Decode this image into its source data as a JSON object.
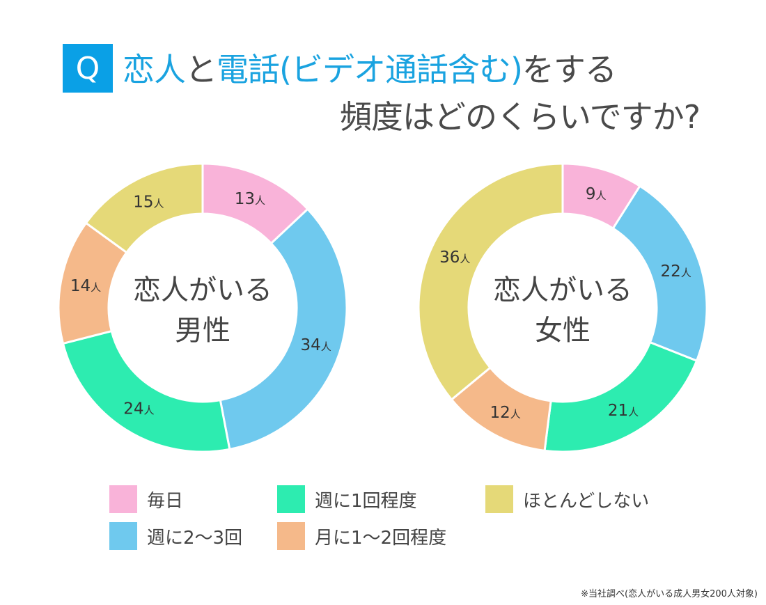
{
  "title": {
    "q": "Q",
    "line1": [
      {
        "text": "恋人",
        "hl": true
      },
      {
        "text": "と",
        "hl": false
      },
      {
        "text": "電話(ビデオ通話含む)",
        "hl": true
      },
      {
        "text": "をする",
        "hl": false
      }
    ],
    "line2": "頻度はどのくらいですか?",
    "accent": "#0aa0e6"
  },
  "chart_data": [
    {
      "type": "pie",
      "donut": true,
      "center_label": [
        "恋人がいる",
        "男性"
      ],
      "unit": "人",
      "categories": [
        "毎日",
        "週に2〜3回",
        "週に1回程度",
        "月に1〜2回程度",
        "ほとんどしない"
      ],
      "values": [
        13,
        34,
        24,
        14,
        15
      ]
    },
    {
      "type": "pie",
      "donut": true,
      "center_label": [
        "恋人がいる",
        "女性"
      ],
      "unit": "人",
      "categories": [
        "毎日",
        "週に2〜3回",
        "週に1回程度",
        "月に1〜2回程度",
        "ほとんどしない"
      ],
      "values": [
        9,
        22,
        21,
        12,
        36
      ]
    }
  ],
  "colors": [
    "#f9b3d9",
    "#6fc9ee",
    "#2decb0",
    "#f5b98a",
    "#e5d978"
  ],
  "legend": [
    {
      "label": "毎日",
      "color": "#f9b3d9"
    },
    {
      "label": "週に1回程度",
      "color": "#2decb0"
    },
    {
      "label": "ほとんどしない",
      "color": "#e5d978"
    },
    {
      "label": "週に2〜3回",
      "color": "#6fc9ee"
    },
    {
      "label": "月に1〜2回程度",
      "color": "#f5b98a"
    }
  ],
  "footnote": "※当社調べ(恋人がいる成人男女200人対象)"
}
